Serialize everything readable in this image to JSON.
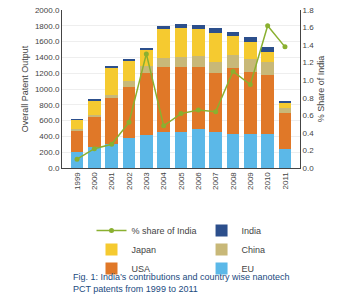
{
  "chart_data": {
    "type": "bar",
    "stacked": true,
    "annotations": [
      "Fig. 1: India’s contributions and country wise nanotech\nPCT patents from 1999 to 2011"
    ],
    "categories": [
      "1999",
      "2000",
      "2001",
      "2002",
      "2003",
      "2004",
      "2005",
      "2006",
      "2007",
      "2008",
      "2009",
      "2010",
      "2011"
    ],
    "series": [
      {
        "name": "EU",
        "color": "#5bb8e8",
        "values": [
          200,
          260,
          300,
          380,
          420,
          450,
          460,
          490,
          460,
          430,
          430,
          430,
          240
        ]
      },
      {
        "name": "USA",
        "color": "#e07828",
        "values": [
          280,
          380,
          580,
          650,
          780,
          830,
          820,
          790,
          740,
          840,
          780,
          750,
          460
        ]
      },
      {
        "name": "China",
        "color": "#c8b878",
        "values": [
          18,
          28,
          48,
          75,
          95,
          115,
          125,
          135,
          145,
          155,
          175,
          165,
          55
        ]
      },
      {
        "name": "Japan",
        "color": "#f5ca30",
        "values": [
          110,
          190,
          340,
          250,
          200,
          370,
          370,
          340,
          370,
          240,
          210,
          120,
          70
        ]
      },
      {
        "name": "India",
        "color": "#2c4f8c",
        "values": [
          8,
          14,
          18,
          22,
          28,
          38,
          48,
          58,
          62,
          52,
          58,
          62,
          28
        ]
      },
      {
        "name": "% share of India",
        "type": "line",
        "axis": "y2",
        "color": "#8ab030",
        "marker": "circle",
        "values": [
          0.1,
          0.22,
          0.27,
          0.52,
          1.3,
          0.48,
          0.62,
          0.66,
          0.64,
          1.1,
          0.95,
          1.62,
          1.38
        ]
      }
    ],
    "ylabel": "Overall Patent Output",
    "y2label": "% Share of India",
    "ylim": [
      0,
      2000
    ],
    "yticks": [
      {
        "value": 0,
        "label": "0.0"
      },
      {
        "value": 200,
        "label": "200.0"
      },
      {
        "value": 400,
        "label": "400.0"
      },
      {
        "value": 600,
        "label": "600.0"
      },
      {
        "value": 800,
        "label": "800.0"
      },
      {
        "value": 1000,
        "label": "1000.0"
      },
      {
        "value": 1200,
        "label": "1200.0"
      },
      {
        "value": 1400,
        "label": "1400.0"
      },
      {
        "value": 1600,
        "label": "1600.0"
      },
      {
        "value": 1800,
        "label": "1800.0"
      },
      {
        "value": 2000,
        "label": "2000.0"
      }
    ],
    "y2lim": [
      0,
      1.8
    ],
    "y2ticks": [
      {
        "value": 0,
        "label": "0.0"
      },
      0.2,
      0.4,
      0.6,
      0.8,
      {
        "value": 1,
        "label": "1.0"
      },
      1.2,
      1.4,
      1.6,
      1.8
    ],
    "grid": true,
    "legend": "bottom"
  }
}
